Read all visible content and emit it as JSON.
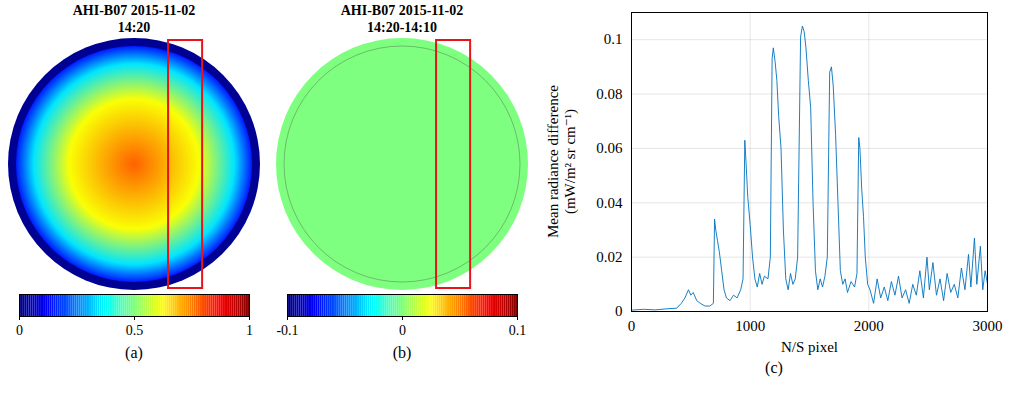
{
  "chart_data": [
    {
      "type": "image",
      "title": "AHI-B07 2015-11-02 14:20",
      "panel_label": "(a)",
      "colorbar": {
        "range": [
          0,
          1
        ],
        "ticks": [
          0,
          0.5,
          1
        ]
      }
    },
    {
      "type": "image",
      "title": "AHI-B07 2015-11-02 14:20-14:10",
      "panel_label": "(b)",
      "colorbar": {
        "range": [
          -0.1,
          0.1
        ],
        "ticks": [
          -0.1,
          0,
          0.1
        ]
      }
    },
    {
      "type": "line",
      "panel_label": "(c)",
      "xlabel": "N/S pixel",
      "ylabel": "Mean radiance difference (mW/m² sr cm⁻¹)",
      "xlim": [
        0,
        3000
      ],
      "xticks": [
        0,
        1000,
        2000,
        3000
      ],
      "ylim": [
        0,
        0.11
      ],
      "yticks": [
        0,
        0.02,
        0.04,
        0.06,
        0.08,
        0.1
      ],
      "grid": true,
      "color": "#0072bd",
      "x": [
        0,
        100,
        200,
        300,
        380,
        420,
        450,
        480,
        500,
        520,
        550,
        580,
        620,
        660,
        690,
        700,
        710,
        725,
        740,
        760,
        780,
        800,
        830,
        860,
        890,
        920,
        940,
        955,
        965,
        980,
        1000,
        1020,
        1040,
        1060,
        1080,
        1100,
        1120,
        1150,
        1170,
        1185,
        1195,
        1210,
        1225,
        1240,
        1260,
        1280,
        1300,
        1320,
        1340,
        1360,
        1380,
        1400,
        1425,
        1440,
        1455,
        1470,
        1490,
        1510,
        1530,
        1550,
        1570,
        1590,
        1610,
        1630,
        1650,
        1670,
        1685,
        1700,
        1720,
        1740,
        1760,
        1780,
        1800,
        1820,
        1850,
        1880,
        1900,
        1915,
        1925,
        1940,
        1955,
        1970,
        1990,
        2010,
        2040,
        2070,
        2100,
        2130,
        2160,
        2190,
        2220,
        2250,
        2280,
        2310,
        2340,
        2370,
        2400,
        2430,
        2460,
        2490,
        2510,
        2540,
        2570,
        2600,
        2630,
        2660,
        2690,
        2720,
        2750,
        2780,
        2810,
        2840,
        2860,
        2890,
        2910,
        2940,
        2960,
        2980,
        3000
      ],
      "values": [
        0.0005,
        0.0008,
        0.0006,
        0.001,
        0.0012,
        0.003,
        0.005,
        0.008,
        0.006,
        0.007,
        0.004,
        0.003,
        0.002,
        0.002,
        0.003,
        0.034,
        0.03,
        0.026,
        0.022,
        0.015,
        0.008,
        0.005,
        0.004,
        0.006,
        0.005,
        0.008,
        0.012,
        0.063,
        0.055,
        0.042,
        0.032,
        0.02,
        0.012,
        0.009,
        0.014,
        0.01,
        0.013,
        0.012,
        0.02,
        0.093,
        0.097,
        0.092,
        0.085,
        0.072,
        0.06,
        0.03,
        0.012,
        0.008,
        0.014,
        0.01,
        0.012,
        0.02,
        0.101,
        0.105,
        0.103,
        0.097,
        0.085,
        0.075,
        0.04,
        0.015,
        0.008,
        0.012,
        0.009,
        0.013,
        0.02,
        0.088,
        0.09,
        0.083,
        0.065,
        0.04,
        0.015,
        0.01,
        0.012,
        0.007,
        0.011,
        0.009,
        0.014,
        0.064,
        0.06,
        0.045,
        0.035,
        0.02,
        0.01,
        0.008,
        0.003,
        0.012,
        0.005,
        0.009,
        0.004,
        0.011,
        0.006,
        0.013,
        0.005,
        0.008,
        0.003,
        0.01,
        0.006,
        0.015,
        0.005,
        0.02,
        0.008,
        0.018,
        0.006,
        0.012,
        0.004,
        0.014,
        0.007,
        0.01,
        0.005,
        0.016,
        0.008,
        0.021,
        0.009,
        0.027,
        0.01,
        0.024,
        0.008,
        0.015,
        0.01
      ]
    }
  ]
}
